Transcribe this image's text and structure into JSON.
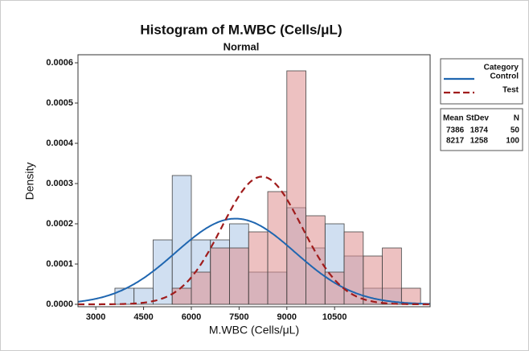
{
  "chart_data": {
    "type": "histogram",
    "title": "Histogram of M.WBC (Cells/μL)",
    "subtitle": "Normal",
    "x_label": "M.WBC (Cells/μL)",
    "y_label": "Density",
    "legend_title": "Category",
    "table_headers": [
      "Mean",
      "StDev",
      "N"
    ],
    "bins": [
      3600,
      4200,
      4800,
      5400,
      6000,
      6600,
      7200,
      7800,
      8400,
      9000,
      9600,
      10200,
      10800,
      11400,
      12000,
      12600,
      13200
    ],
    "series": [
      {
        "name": "Control",
        "color": "#1f66b0",
        "fill": "#a9c4e6",
        "mean": 7386,
        "stdev": 1874,
        "n": 50,
        "values": [
          4e-05,
          4e-05,
          0.00016,
          0.00032,
          0.00016,
          0.00016,
          0.0002,
          8e-05,
          8e-05,
          0.00024,
          0.00014,
          0.0002,
          0.00012,
          4e-05,
          4e-05,
          0
        ]
      },
      {
        "name": "Test",
        "color": "#a01c1c",
        "fill": "#de8e8e",
        "mean": 8217,
        "stdev": 1258,
        "n": 100,
        "values": [
          0,
          0,
          0,
          4e-05,
          8e-05,
          0.00014,
          0.00014,
          0.00018,
          0.00028,
          0.00058,
          0.00022,
          8e-05,
          0.00018,
          0.00012,
          0.00014,
          4e-05
        ]
      }
    ],
    "xlim": [
      2440,
      13500
    ],
    "xticks": [
      3000,
      4500,
      6000,
      7500,
      9000,
      10500
    ],
    "ylim": [
      -6e-06,
      0.00062
    ],
    "yticks": [
      {
        "value": 0,
        "label": "0.0000"
      },
      {
        "value": 0.0001,
        "label": "0.0001"
      },
      {
        "value": 0.0002,
        "label": "0.0002"
      },
      {
        "value": 0.0003,
        "label": "0.0003"
      },
      {
        "value": 0.0004,
        "label": "0.0004"
      },
      {
        "value": 0.0005,
        "label": "0.0005"
      },
      {
        "value": 0.0006,
        "label": "0.0006"
      }
    ]
  }
}
